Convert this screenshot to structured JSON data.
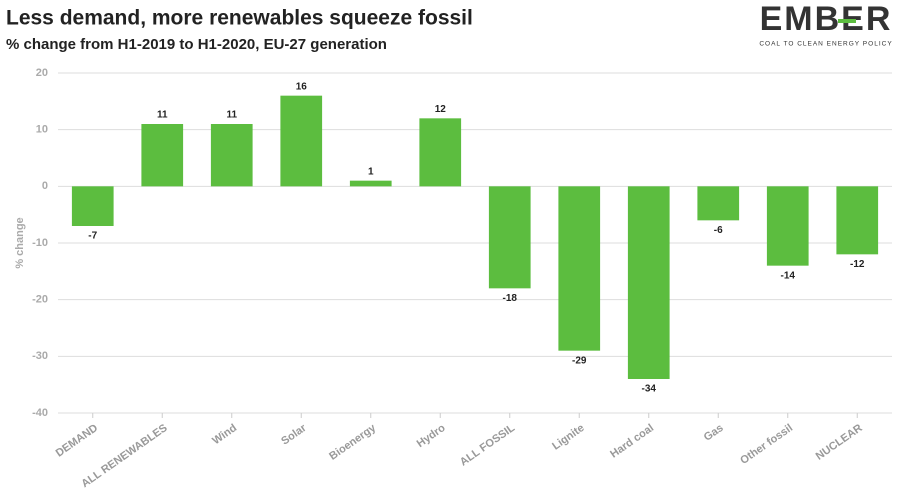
{
  "chart_data": {
    "type": "bar",
    "title": "Less demand, more renewables squeeze fossil",
    "subtitle": "% change from H1-2019 to H1-2020, EU-27 generation",
    "logo": "EMBER",
    "logo_tagline": "COAL TO CLEAN ENERGY POLICY",
    "y_label": "% change",
    "categories": [
      "DEMAND",
      "ALL RENEWABLES",
      "Wind",
      "Solar",
      "Bioenergy",
      "Hydro",
      "ALL FOSSIL",
      "Lignite",
      "Hard coal",
      "Gas",
      "Other fossil",
      "NUCLEAR"
    ],
    "values": [
      -7,
      11,
      11,
      16,
      1,
      12,
      -18,
      -29,
      -34,
      -6,
      -14,
      -12
    ],
    "color": "#5cbd3f",
    "ylim": [
      -40,
      20
    ],
    "yticks": [
      -40,
      -30,
      -20,
      -10,
      0,
      10,
      20
    ],
    "grid": true
  }
}
